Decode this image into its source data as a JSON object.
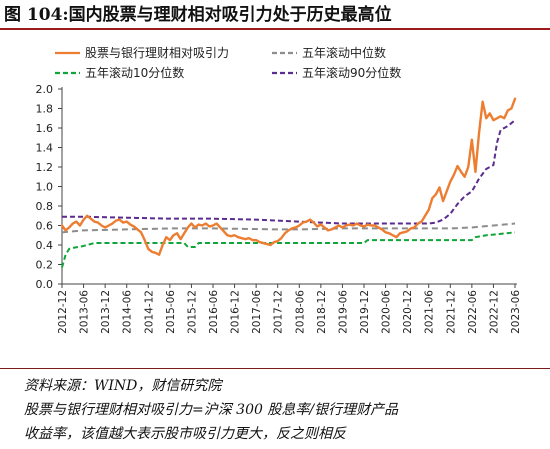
{
  "title": "图 104:国内股票与理财相对吸引力处于历史最高位",
  "footer": {
    "source": "资料来源：WIND，财信研究院",
    "note_line1": "股票与银行理财相对吸引力=沪深 300 股息率/银行理财产品",
    "note_line2": "收益率，该值越大表示股市吸引力更大，反之则相反"
  },
  "colors": {
    "ratio": "#ED7D31",
    "median": "#8C8C8C",
    "p10": "#10A53A",
    "p90": "#5B2C8F",
    "title_rule": "#9b1b1b"
  },
  "chart_data": {
    "type": "line",
    "title": "",
    "xlabel": "",
    "ylabel": "",
    "ylim": [
      0,
      2.0
    ],
    "yticks": [
      "0.0",
      "0.2",
      "0.4",
      "0.6",
      "0.8",
      "1.0",
      "1.2",
      "1.4",
      "1.6",
      "1.8",
      "2.0"
    ],
    "xticks": [
      "2012-12",
      "2013-06",
      "2013-12",
      "2014-06",
      "2014-12",
      "2015-06",
      "2015-12",
      "2016-06",
      "2016-12",
      "2017-06",
      "2017-12",
      "2018-06",
      "2018-12",
      "2019-06",
      "2019-12",
      "2020-06",
      "2020-12",
      "2021-06",
      "2021-12",
      "2022-06",
      "2022-12",
      "2023-06"
    ],
    "x_range": [
      "2012-12",
      "2023-06"
    ],
    "legend_position": "top",
    "series": [
      {
        "name": "股票与银行理财相对吸引力",
        "key": "ratio",
        "style": "solid",
        "points": [
          [
            "2012-12",
            0.6
          ],
          [
            "2013-01",
            0.55
          ],
          [
            "2013-02",
            0.58
          ],
          [
            "2013-03",
            0.62
          ],
          [
            "2013-04",
            0.64
          ],
          [
            "2013-05",
            0.6
          ],
          [
            "2013-06",
            0.66
          ],
          [
            "2013-07",
            0.7
          ],
          [
            "2013-08",
            0.67
          ],
          [
            "2013-09",
            0.64
          ],
          [
            "2013-10",
            0.63
          ],
          [
            "2013-11",
            0.6
          ],
          [
            "2013-12",
            0.58
          ],
          [
            "2014-01",
            0.6
          ],
          [
            "2014-02",
            0.62
          ],
          [
            "2014-03",
            0.65
          ],
          [
            "2014-04",
            0.66
          ],
          [
            "2014-05",
            0.63
          ],
          [
            "2014-06",
            0.64
          ],
          [
            "2014-07",
            0.61
          ],
          [
            "2014-08",
            0.59
          ],
          [
            "2014-09",
            0.56
          ],
          [
            "2014-10",
            0.53
          ],
          [
            "2014-11",
            0.45
          ],
          [
            "2014-12",
            0.36
          ],
          [
            "2015-01",
            0.33
          ],
          [
            "2015-02",
            0.32
          ],
          [
            "2015-03",
            0.3
          ],
          [
            "2015-04",
            0.4
          ],
          [
            "2015-05",
            0.48
          ],
          [
            "2015-06",
            0.45
          ],
          [
            "2015-07",
            0.5
          ],
          [
            "2015-08",
            0.52
          ],
          [
            "2015-09",
            0.46
          ],
          [
            "2015-10",
            0.52
          ],
          [
            "2015-11",
            0.58
          ],
          [
            "2015-12",
            0.62
          ],
          [
            "2016-01",
            0.58
          ],
          [
            "2016-02",
            0.61
          ],
          [
            "2016-03",
            0.6
          ],
          [
            "2016-04",
            0.62
          ],
          [
            "2016-05",
            0.59
          ],
          [
            "2016-06",
            0.6
          ],
          [
            "2016-07",
            0.62
          ],
          [
            "2016-08",
            0.58
          ],
          [
            "2016-09",
            0.54
          ],
          [
            "2016-10",
            0.5
          ],
          [
            "2016-11",
            0.49
          ],
          [
            "2016-12",
            0.5
          ],
          [
            "2017-01",
            0.48
          ],
          [
            "2017-02",
            0.47
          ],
          [
            "2017-03",
            0.46
          ],
          [
            "2017-04",
            0.47
          ],
          [
            "2017-05",
            0.45
          ],
          [
            "2017-06",
            0.45
          ],
          [
            "2017-07",
            0.43
          ],
          [
            "2017-08",
            0.42
          ],
          [
            "2017-09",
            0.41
          ],
          [
            "2017-10",
            0.4
          ],
          [
            "2017-11",
            0.43
          ],
          [
            "2017-12",
            0.44
          ],
          [
            "2018-01",
            0.47
          ],
          [
            "2018-02",
            0.52
          ],
          [
            "2018-03",
            0.55
          ],
          [
            "2018-04",
            0.57
          ],
          [
            "2018-05",
            0.58
          ],
          [
            "2018-06",
            0.6
          ],
          [
            "2018-07",
            0.63
          ],
          [
            "2018-08",
            0.64
          ],
          [
            "2018-09",
            0.66
          ],
          [
            "2018-10",
            0.63
          ],
          [
            "2018-11",
            0.59
          ],
          [
            "2018-12",
            0.61
          ],
          [
            "2019-01",
            0.58
          ],
          [
            "2019-02",
            0.55
          ],
          [
            "2019-03",
            0.56
          ],
          [
            "2019-04",
            0.58
          ],
          [
            "2019-05",
            0.6
          ],
          [
            "2019-06",
            0.58
          ],
          [
            "2019-07",
            0.6
          ],
          [
            "2019-08",
            0.61
          ],
          [
            "2019-09",
            0.6
          ],
          [
            "2019-10",
            0.62
          ],
          [
            "2019-11",
            0.6
          ],
          [
            "2019-12",
            0.59
          ],
          [
            "2020-01",
            0.61
          ],
          [
            "2020-02",
            0.6
          ],
          [
            "2020-03",
            0.6
          ],
          [
            "2020-04",
            0.58
          ],
          [
            "2020-05",
            0.56
          ],
          [
            "2020-06",
            0.53
          ],
          [
            "2020-07",
            0.52
          ],
          [
            "2020-08",
            0.5
          ],
          [
            "2020-09",
            0.48
          ],
          [
            "2020-10",
            0.52
          ],
          [
            "2020-11",
            0.53
          ],
          [
            "2020-12",
            0.54
          ],
          [
            "2021-01",
            0.57
          ],
          [
            "2021-02",
            0.58
          ],
          [
            "2021-03",
            0.62
          ],
          [
            "2021-04",
            0.64
          ],
          [
            "2021-05",
            0.7
          ],
          [
            "2021-06",
            0.76
          ],
          [
            "2021-07",
            0.88
          ],
          [
            "2021-08",
            0.92
          ],
          [
            "2021-09",
            0.99
          ],
          [
            "2021-10",
            0.85
          ],
          [
            "2021-11",
            0.95
          ],
          [
            "2021-12",
            1.05
          ],
          [
            "2022-01",
            1.12
          ],
          [
            "2022-02",
            1.21
          ],
          [
            "2022-03",
            1.15
          ],
          [
            "2022-04",
            1.1
          ],
          [
            "2022-05",
            1.2
          ],
          [
            "2022-06",
            1.48
          ],
          [
            "2022-07",
            1.15
          ],
          [
            "2022-08",
            1.55
          ],
          [
            "2022-09",
            1.87
          ],
          [
            "2022-10",
            1.7
          ],
          [
            "2022-11",
            1.75
          ],
          [
            "2022-12",
            1.68
          ],
          [
            "2023-01",
            1.7
          ],
          [
            "2023-02",
            1.72
          ],
          [
            "2023-03",
            1.7
          ],
          [
            "2023-04",
            1.78
          ],
          [
            "2023-05",
            1.8
          ],
          [
            "2023-06",
            1.9
          ]
        ]
      },
      {
        "name": "五年滚动中位数",
        "key": "median",
        "style": "dashed",
        "points": [
          [
            "2012-12",
            0.53
          ],
          [
            "2013-03",
            0.54
          ],
          [
            "2013-06",
            0.55
          ],
          [
            "2014-06",
            0.56
          ],
          [
            "2015-06",
            0.57
          ],
          [
            "2016-06",
            0.57
          ],
          [
            "2017-12",
            0.56
          ],
          [
            "2018-06",
            0.56
          ],
          [
            "2019-06",
            0.57
          ],
          [
            "2020-06",
            0.57
          ],
          [
            "2021-06",
            0.57
          ],
          [
            "2021-12",
            0.57
          ],
          [
            "2022-06",
            0.58
          ],
          [
            "2022-12",
            0.6
          ],
          [
            "2023-03",
            0.61
          ],
          [
            "2023-06",
            0.62
          ]
        ]
      },
      {
        "name": "五年滚动10分位数",
        "key": "p10",
        "style": "dashed",
        "points": [
          [
            "2012-12",
            0.17
          ],
          [
            "2013-01",
            0.3
          ],
          [
            "2013-02",
            0.36
          ],
          [
            "2013-03",
            0.37
          ],
          [
            "2013-06",
            0.39
          ],
          [
            "2013-09",
            0.42
          ],
          [
            "2014-06",
            0.42
          ],
          [
            "2015-06",
            0.42
          ],
          [
            "2015-10",
            0.42
          ],
          [
            "2015-11",
            0.38
          ],
          [
            "2016-01",
            0.38
          ],
          [
            "2016-02",
            0.42
          ],
          [
            "2018-06",
            0.42
          ],
          [
            "2019-06",
            0.42
          ],
          [
            "2019-12",
            0.42
          ],
          [
            "2020-01",
            0.45
          ],
          [
            "2021-06",
            0.45
          ],
          [
            "2022-06",
            0.45
          ],
          [
            "2022-07",
            0.48
          ],
          [
            "2022-10",
            0.5
          ],
          [
            "2023-01",
            0.51
          ],
          [
            "2023-06",
            0.53
          ]
        ]
      },
      {
        "name": "五年滚动90分位数",
        "key": "p90",
        "style": "dashed",
        "points": [
          [
            "2012-12",
            0.69
          ],
          [
            "2013-06",
            0.69
          ],
          [
            "2014-06",
            0.68
          ],
          [
            "2015-06",
            0.67
          ],
          [
            "2016-06",
            0.67
          ],
          [
            "2017-06",
            0.66
          ],
          [
            "2018-06",
            0.64
          ],
          [
            "2019-06",
            0.62
          ],
          [
            "2020-06",
            0.62
          ],
          [
            "2021-06",
            0.62
          ],
          [
            "2021-08",
            0.63
          ],
          [
            "2021-10",
            0.66
          ],
          [
            "2021-12",
            0.72
          ],
          [
            "2022-02",
            0.82
          ],
          [
            "2022-04",
            0.9
          ],
          [
            "2022-06",
            0.95
          ],
          [
            "2022-08",
            1.08
          ],
          [
            "2022-10",
            1.18
          ],
          [
            "2022-12",
            1.22
          ],
          [
            "2023-01",
            1.45
          ],
          [
            "2023-02",
            1.58
          ],
          [
            "2023-03",
            1.6
          ],
          [
            "2023-04",
            1.62
          ],
          [
            "2023-05",
            1.65
          ],
          [
            "2023-06",
            1.68
          ]
        ]
      }
    ]
  }
}
